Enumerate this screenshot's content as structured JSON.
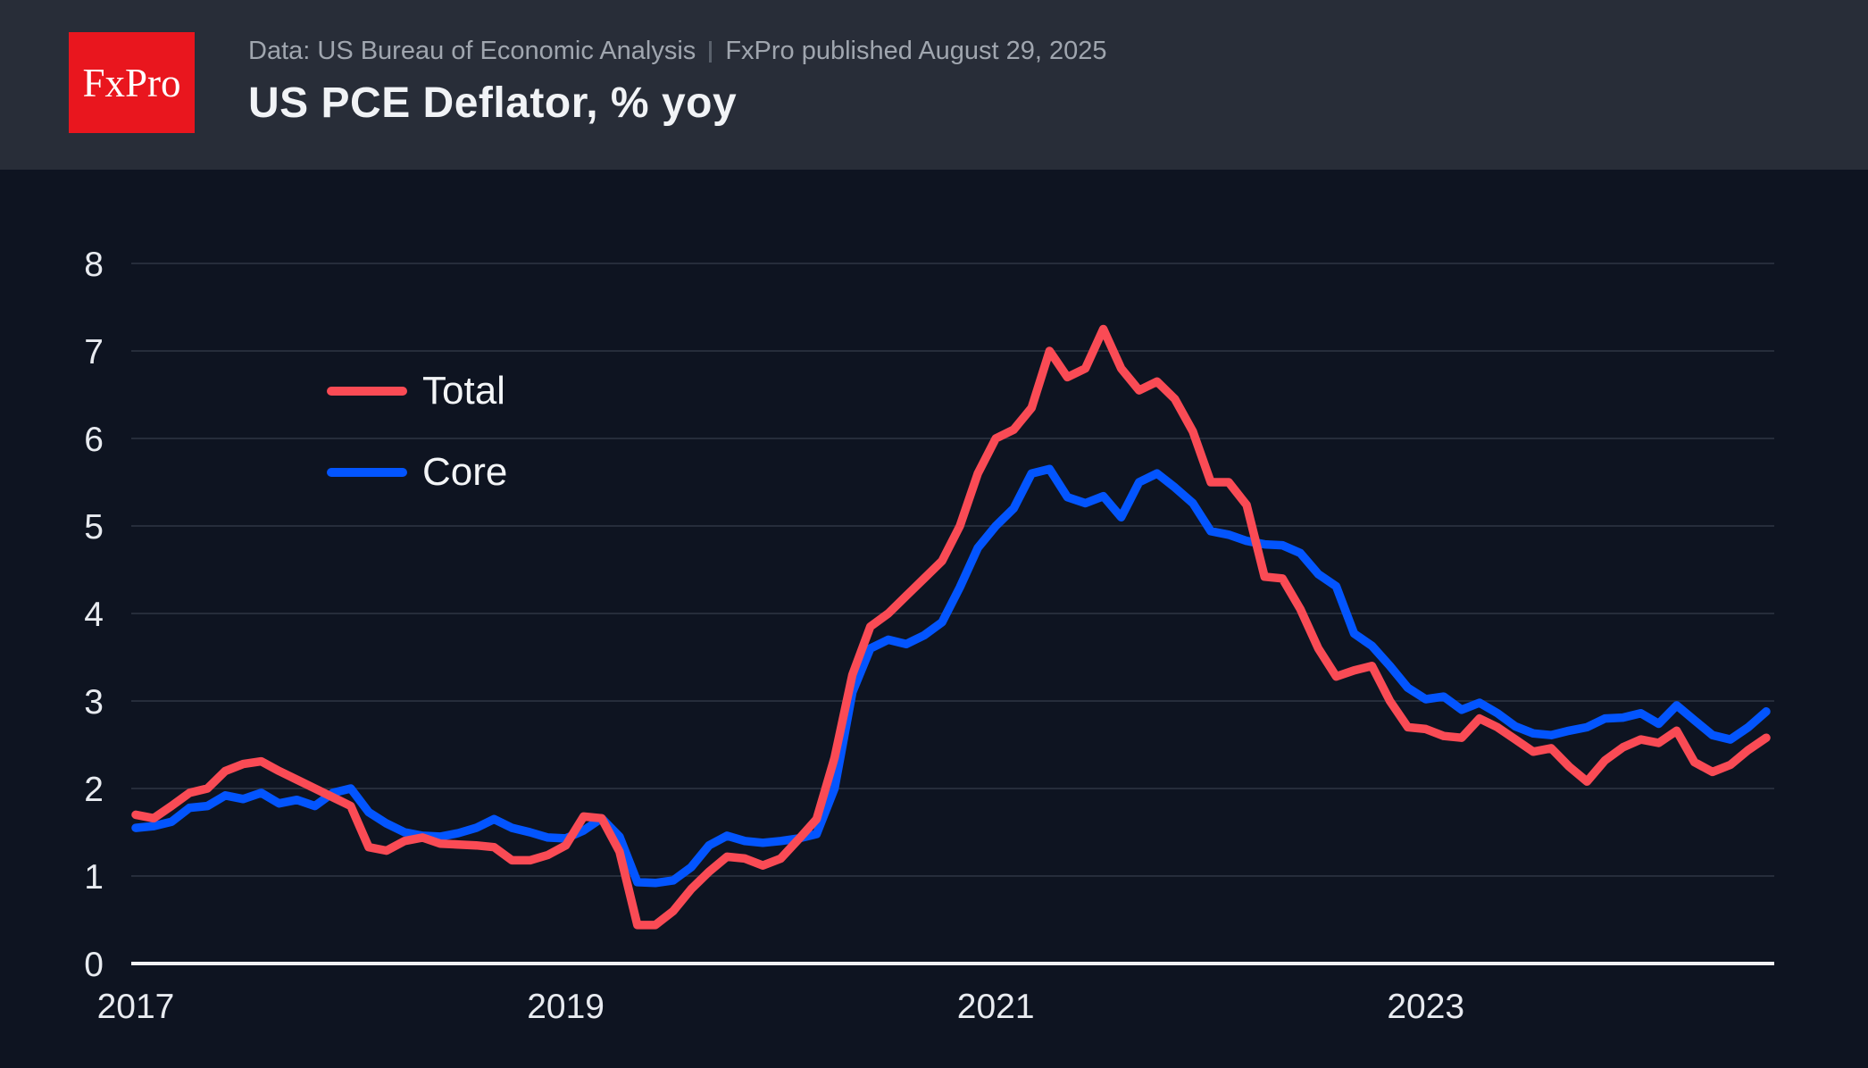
{
  "header": {
    "logo_text": "FxPro",
    "source": {
      "data_source": "Data: US Bureau of Economic Analysis",
      "published": "FxPro published August 29, 2025"
    },
    "title": "US PCE Deflator, % yoy"
  },
  "colors": {
    "header_bg": "#282D38",
    "plot_bg": "#0E1421",
    "logo_red": "#E9161E",
    "total_line": "#FA4B55",
    "core_line": "#0355FF",
    "gridline": "#262D3B",
    "axis_line": "#F2F4F7",
    "tick_label": "#E8EBF0",
    "subtitle_text": "#A0A6AF",
    "title_text": "#F1F3F6"
  },
  "chart_data": {
    "type": "line",
    "title": "US PCE Deflator, % yoy",
    "xlabel": "",
    "ylabel": "",
    "frequency": "monthly",
    "x_start": "2017-12",
    "x_end": "2025-07",
    "x_tick_labels": [
      "2017",
      "2019",
      "2021",
      "2023"
    ],
    "x_tick_indices": [
      0,
      24,
      48,
      72
    ],
    "y_ticks": [
      0,
      1,
      2,
      3,
      4,
      5,
      6,
      7,
      8
    ],
    "ylim": [
      0,
      8.6
    ],
    "grid": "horizontal",
    "legend_position": "upper-left-inside",
    "series": [
      {
        "name": "Total",
        "color": "#FA4B55",
        "values": [
          1.7,
          1.66,
          1.8,
          1.95,
          2.0,
          2.2,
          2.28,
          2.31,
          2.2,
          2.1,
          2.0,
          1.9,
          1.8,
          1.33,
          1.29,
          1.4,
          1.44,
          1.37,
          1.36,
          1.35,
          1.33,
          1.18,
          1.18,
          1.24,
          1.35,
          1.68,
          1.66,
          1.28,
          0.44,
          0.44,
          0.6,
          0.85,
          1.05,
          1.22,
          1.2,
          1.12,
          1.2,
          1.42,
          1.65,
          2.35,
          3.3,
          3.85,
          4.0,
          4.2,
          4.4,
          4.6,
          5.0,
          5.6,
          6.0,
          6.1,
          6.35,
          7.0,
          6.7,
          6.8,
          7.25,
          6.8,
          6.55,
          6.65,
          6.45,
          6.08,
          5.5,
          5.5,
          5.24,
          4.42,
          4.4,
          4.05,
          3.6,
          3.28,
          3.35,
          3.4,
          3.0,
          2.7,
          2.68,
          2.6,
          2.58,
          2.8,
          2.7,
          2.56,
          2.42,
          2.46,
          2.25,
          2.08,
          2.32,
          2.47,
          2.56,
          2.52,
          2.66,
          2.3,
          2.19,
          2.27,
          2.44,
          2.58
        ]
      },
      {
        "name": "Core",
        "color": "#0355FF",
        "values": [
          1.55,
          1.57,
          1.62,
          1.78,
          1.8,
          1.92,
          1.88,
          1.95,
          1.83,
          1.87,
          1.8,
          1.95,
          2.0,
          1.73,
          1.6,
          1.5,
          1.46,
          1.45,
          1.49,
          1.55,
          1.65,
          1.55,
          1.5,
          1.44,
          1.43,
          1.52,
          1.66,
          1.45,
          0.93,
          0.92,
          0.95,
          1.1,
          1.35,
          1.46,
          1.4,
          1.38,
          1.4,
          1.43,
          1.48,
          2.0,
          3.1,
          3.6,
          3.7,
          3.65,
          3.75,
          3.9,
          4.3,
          4.75,
          5.0,
          5.2,
          5.6,
          5.65,
          5.33,
          5.26,
          5.34,
          5.1,
          5.5,
          5.6,
          5.44,
          5.26,
          4.94,
          4.9,
          4.83,
          4.79,
          4.78,
          4.69,
          4.45,
          4.31,
          3.77,
          3.63,
          3.4,
          3.15,
          3.02,
          3.05,
          2.9,
          2.98,
          2.86,
          2.71,
          2.63,
          2.61,
          2.66,
          2.7,
          2.8,
          2.81,
          2.86,
          2.74,
          2.95,
          2.78,
          2.61,
          2.56,
          2.7,
          2.88
        ]
      }
    ]
  }
}
